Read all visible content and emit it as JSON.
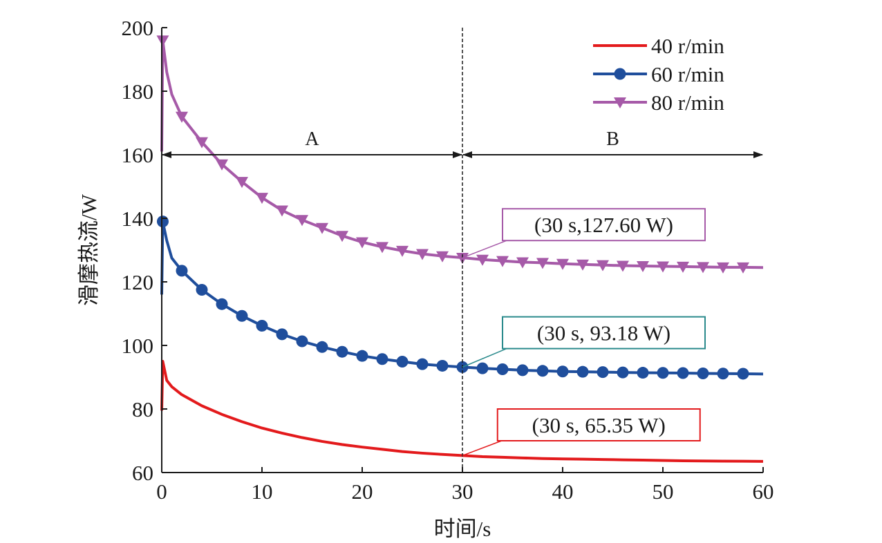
{
  "chart_data": {
    "type": "line",
    "xlabel": "时间/s",
    "ylabel": "滑摩热流/W",
    "xlim": [
      0,
      60
    ],
    "ylim": [
      60,
      200
    ],
    "xticks": [
      0,
      10,
      20,
      30,
      40,
      50,
      60
    ],
    "yticks": [
      60,
      80,
      100,
      120,
      140,
      160,
      180,
      200
    ],
    "grid": false,
    "legend_position": "top-right",
    "series": [
      {
        "name": "40 r/min",
        "color": "#e31a1c",
        "marker": "none",
        "x": [
          0,
          0.1,
          0.5,
          1,
          2,
          4,
          6,
          8,
          10,
          12,
          14,
          16,
          18,
          20,
          22,
          24,
          26,
          28,
          30,
          32,
          34,
          36,
          38,
          40,
          42,
          44,
          46,
          48,
          50,
          52,
          54,
          56,
          58,
          60
        ],
        "y": [
          79.5,
          95,
          89,
          87,
          84.5,
          81,
          78.3,
          76,
          74,
          72.4,
          71,
          69.8,
          68.8,
          68,
          67.3,
          66.6,
          66.1,
          65.7,
          65.35,
          65.0,
          64.8,
          64.6,
          64.4,
          64.3,
          64.2,
          64.1,
          64.0,
          63.9,
          63.8,
          63.7,
          63.65,
          63.6,
          63.55,
          63.5
        ]
      },
      {
        "name": "60 r/min",
        "color": "#1f4e9c",
        "marker": "circle",
        "x": [
          0,
          0.1,
          0.5,
          1,
          2,
          4,
          6,
          8,
          10,
          12,
          14,
          16,
          18,
          20,
          22,
          24,
          26,
          28,
          30,
          32,
          34,
          36,
          38,
          40,
          42,
          44,
          46,
          48,
          50,
          52,
          54,
          56,
          58,
          60
        ],
        "y": [
          116,
          139,
          133,
          127.5,
          123.5,
          117.5,
          113,
          109.3,
          106.2,
          103.5,
          101.3,
          99.5,
          98,
          96.7,
          95.7,
          94.9,
          94.1,
          93.6,
          93.18,
          92.8,
          92.5,
          92.2,
          92.0,
          91.8,
          91.7,
          91.6,
          91.5,
          91.4,
          91.35,
          91.3,
          91.2,
          91.15,
          91.1,
          91.0
        ]
      },
      {
        "name": "80 r/min",
        "color": "#a65aa8",
        "marker": "triangle-down",
        "x": [
          0,
          0.1,
          0.5,
          1,
          2,
          4,
          6,
          8,
          10,
          12,
          14,
          16,
          18,
          20,
          22,
          24,
          26,
          28,
          30,
          32,
          34,
          36,
          38,
          40,
          42,
          44,
          46,
          48,
          50,
          52,
          54,
          56,
          58,
          60
        ],
        "y": [
          161,
          196,
          186,
          179,
          172,
          164,
          157,
          151.5,
          146.5,
          142.5,
          139.5,
          137,
          134.5,
          132.5,
          131,
          129.8,
          128.8,
          128.1,
          127.6,
          127.0,
          126.6,
          126.2,
          126.0,
          125.7,
          125.5,
          125.3,
          125.1,
          125.0,
          124.9,
          124.8,
          124.7,
          124.6,
          124.6,
          124.5
        ]
      }
    ],
    "divider_x": 30,
    "regions": [
      {
        "label": "A",
        "x_start": 0,
        "x_end": 30,
        "y": 160
      },
      {
        "label": "B",
        "x_start": 30,
        "x_end": 60,
        "y": 160
      }
    ],
    "annotations": [
      {
        "text": "(30 s,127.60 W)",
        "x": 30,
        "y": 127.6,
        "label_x": 34,
        "label_y": 138,
        "color": "#a65aa8"
      },
      {
        "text": "(30 s, 93.18 W)",
        "x": 30,
        "y": 93.18,
        "label_x": 34,
        "label_y": 104,
        "color": "#2a8a8c"
      },
      {
        "text": "(30 s, 65.35 W)",
        "x": 30,
        "y": 65.35,
        "label_x": 33.5,
        "label_y": 75,
        "color": "#e31a1c"
      }
    ]
  }
}
